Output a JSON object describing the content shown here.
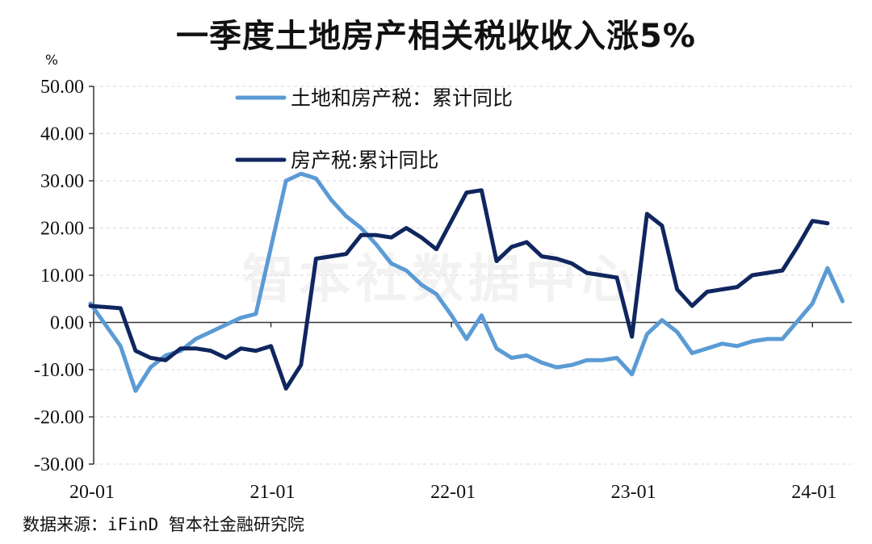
{
  "title": "一季度土地房产相关税收收入涨5%",
  "source": "数据来源：iFinD 智本社金融研究院",
  "watermark": "智本社数据中心",
  "chart_data": {
    "type": "line",
    "unit_label": "%",
    "ylim": [
      -30,
      50
    ],
    "y_ticks": [
      "50.00",
      "40.00",
      "30.00",
      "20.00",
      "10.00",
      "0.00",
      "-10.00",
      "-20.00",
      "-30.00"
    ],
    "y_tick_values": [
      50,
      40,
      30,
      20,
      10,
      0,
      -10,
      -20,
      -30
    ],
    "x_ticks": [
      "20-01",
      "21-01",
      "22-01",
      "23-01",
      "24-01"
    ],
    "x_tick_index": [
      0,
      12,
      24,
      36,
      48
    ],
    "x": [
      "20-01",
      "20-02",
      "20-03",
      "20-04",
      "20-05",
      "20-06",
      "20-07",
      "20-08",
      "20-09",
      "20-10",
      "20-11",
      "20-12",
      "21-01",
      "21-02",
      "21-03",
      "21-04",
      "21-05",
      "21-06",
      "21-07",
      "21-08",
      "21-09",
      "21-10",
      "21-11",
      "21-12",
      "22-01",
      "22-02",
      "22-03",
      "22-04",
      "22-05",
      "22-06",
      "22-07",
      "22-08",
      "22-09",
      "22-10",
      "22-11",
      "22-12",
      "23-01",
      "23-02",
      "23-03",
      "23-04",
      "23-05",
      "23-06",
      "23-07",
      "23-08",
      "23-09",
      "23-10",
      "23-11",
      "23-12",
      "24-01",
      "24-02",
      "24-03"
    ],
    "grid": "horizontal dashed",
    "legend_position": "top-center",
    "colors": {
      "land_property": "#5b9bd5",
      "property": "#10265f"
    },
    "series": [
      {
        "name": "土地和房产税：累计同比",
        "color": "#5b9bd5",
        "values": [
          4.0,
          null,
          -5.0,
          -14.5,
          -9.5,
          -7.0,
          -6.0,
          -3.5,
          -2.0,
          -0.5,
          1.0,
          1.8,
          null,
          30.0,
          31.5,
          30.5,
          26.0,
          22.5,
          20.0,
          16.5,
          12.5,
          11.0,
          8.0,
          6.0,
          1.5,
          -3.5,
          1.5,
          -5.5,
          -7.5,
          -7.0,
          -8.5,
          -9.5,
          -9.0,
          -8.0,
          -8.0,
          -7.5,
          -11.0,
          -2.5,
          0.5,
          -2.0,
          -6.5,
          -5.5,
          -4.5,
          -5.0,
          -4.0,
          -3.5,
          -3.5,
          null,
          4.0,
          11.5,
          4.5
        ]
      },
      {
        "name": "房产税:累计同比",
        "color": "#10265f",
        "values": [
          3.5,
          null,
          3.0,
          -6.0,
          -7.5,
          -8.0,
          -5.5,
          -5.5,
          -6.0,
          -7.5,
          -5.5,
          -6.0,
          -5.0,
          -14.0,
          -9.0,
          13.5,
          14.0,
          14.5,
          18.5,
          18.5,
          18.0,
          20.0,
          18.0,
          15.5,
          null,
          27.5,
          28.0,
          13.0,
          16.0,
          17.0,
          14.0,
          13.5,
          12.5,
          10.5,
          10.0,
          9.5,
          -3.0,
          23.0,
          20.5,
          7.0,
          3.5,
          6.5,
          7.0,
          7.5,
          10.0,
          10.5,
          11.0,
          16.0,
          21.5,
          21.0,
          null
        ]
      }
    ]
  }
}
